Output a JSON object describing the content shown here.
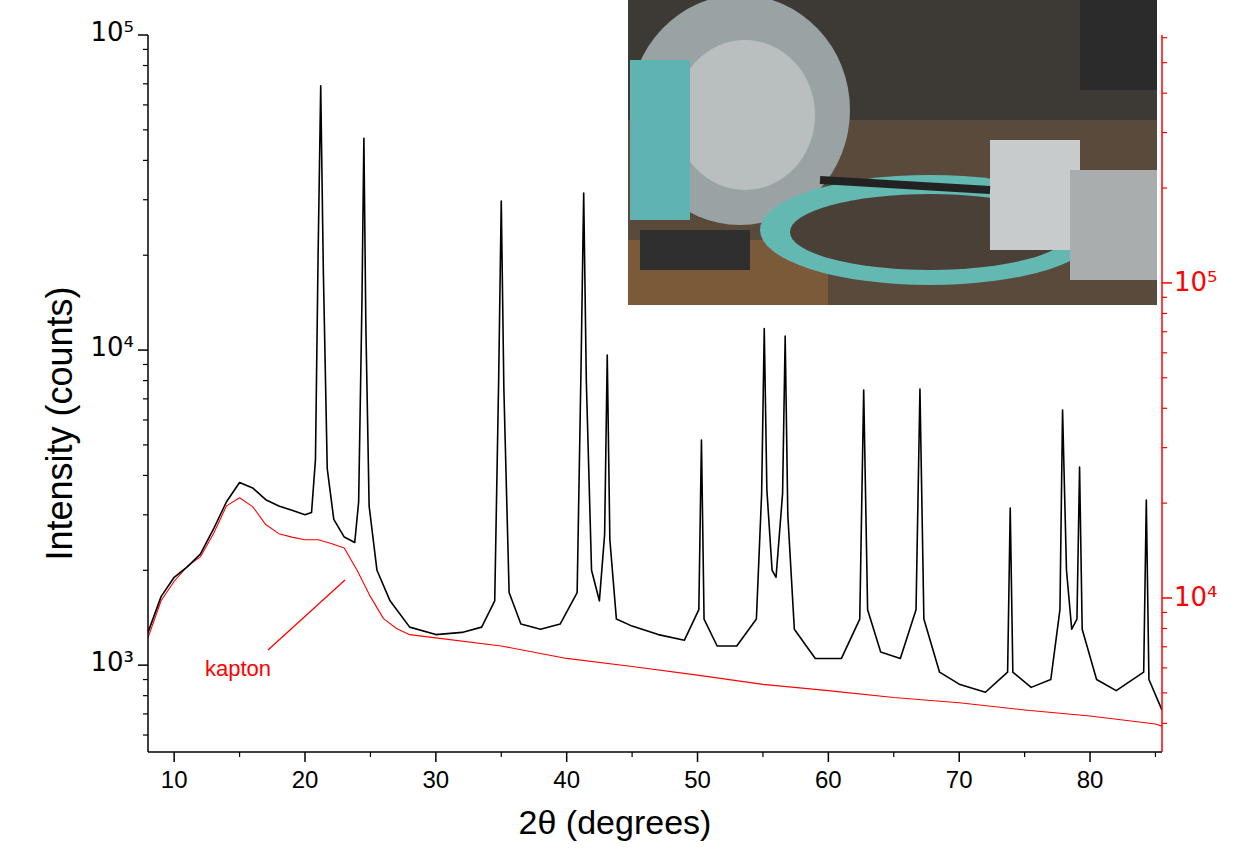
{
  "chart_data": {
    "type": "line",
    "x_label": "2θ  (degrees)",
    "y_label": "Intensity  (counts)",
    "log": "y",
    "xlim": [
      8,
      85.5
    ],
    "xticks": [
      10,
      20,
      30,
      40,
      50,
      60,
      70,
      80
    ],
    "ylim": [
      530,
      100000
    ],
    "yticks": [
      {
        "value": 1000,
        "label": "10³"
      },
      {
        "value": 10000,
        "label": "10⁴"
      },
      {
        "value": 100000,
        "label": "10⁵"
      }
    ],
    "y2lim": [
      3245,
      612000
    ],
    "y2ticks": [
      {
        "value": 10000,
        "label": "10⁴"
      },
      {
        "value": 100000,
        "label": "10⁵"
      }
    ],
    "series": [
      {
        "color": "#000000",
        "x": [
          8,
          9,
          10,
          11,
          12,
          13,
          14,
          15,
          16,
          17,
          18,
          19,
          20,
          20.5,
          20.8,
          21.0,
          21.2,
          21.4,
          21.7,
          22.2,
          23,
          23.8,
          24.1,
          24.35,
          24.5,
          24.65,
          24.9,
          25.5,
          26.5,
          28,
          30,
          32,
          33.5,
          34.5,
          34.8,
          35.0,
          35.2,
          35.6,
          36.5,
          38,
          39.5,
          40.8,
          41.1,
          41.3,
          41.5,
          41.9,
          42.5,
          42.9,
          43.1,
          43.3,
          43.8,
          45,
          47,
          49,
          50.1,
          50.3,
          50.5,
          51.5,
          53,
          54.5,
          54.9,
          55.1,
          55.3,
          55.7,
          56.0,
          56.5,
          56.7,
          56.9,
          57.4,
          59,
          61,
          62.4,
          62.7,
          63.0,
          64,
          65.5,
          66.7,
          67.0,
          67.3,
          68.5,
          70,
          72,
          73.7,
          73.9,
          74.1,
          75.5,
          77,
          77.7,
          77.9,
          78.2,
          78.6,
          79.0,
          79.2,
          79.4,
          80.5,
          82,
          84.1,
          84.3,
          84.5,
          85.5
        ],
        "values": [
          1270,
          1650,
          1900,
          2050,
          2250,
          2700,
          3300,
          3800,
          3650,
          3350,
          3200,
          3100,
          3000,
          3050,
          4500,
          20000,
          69000,
          18000,
          4200,
          2900,
          2550,
          2450,
          3300,
          14000,
          47000,
          12000,
          3200,
          2000,
          1600,
          1320,
          1250,
          1270,
          1320,
          1600,
          8000,
          29700,
          7500,
          1700,
          1350,
          1300,
          1350,
          1700,
          9000,
          31500,
          8000,
          2000,
          1600,
          2600,
          9650,
          2500,
          1400,
          1330,
          1250,
          1200,
          1500,
          5180,
          1400,
          1150,
          1150,
          1400,
          3500,
          11700,
          3600,
          2000,
          1900,
          3500,
          11070,
          3000,
          1300,
          1050,
          1050,
          1400,
          7470,
          1500,
          1100,
          1050,
          1500,
          7520,
          1400,
          950,
          870,
          820,
          950,
          3150,
          950,
          850,
          900,
          1500,
          6450,
          2000,
          1300,
          1400,
          4250,
          1300,
          900,
          830,
          950,
          3340,
          900,
          720
        ]
      },
      {
        "name": "kapton",
        "color": "#ff0000",
        "axis": "y2",
        "x": [
          8,
          9,
          10,
          11,
          12,
          13,
          14,
          15,
          16,
          17,
          18,
          19,
          20,
          21,
          22,
          23,
          24,
          25,
          26,
          27,
          28,
          30,
          35,
          40,
          45,
          50,
          55,
          60,
          65,
          70,
          75,
          80,
          85,
          85.5
        ],
        "values": [
          7470,
          9800,
          11300,
          12600,
          13500,
          16000,
          19600,
          20800,
          19500,
          17100,
          16000,
          15600,
          15300,
          15300,
          14900,
          14400,
          12200,
          10100,
          8600,
          8000,
          7650,
          7470,
          7040,
          6430,
          6060,
          5690,
          5320,
          5080,
          4830,
          4650,
          4410,
          4220,
          3980,
          3920
        ]
      }
    ]
  }
}
